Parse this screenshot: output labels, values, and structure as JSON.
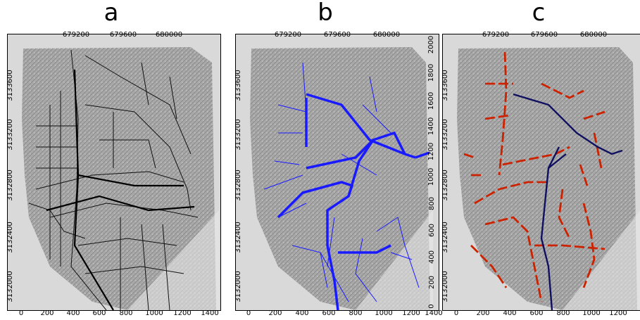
{
  "panels": [
    {
      "label": "a",
      "network_color": "#111111",
      "description_hint": "parcel boundaries"
    },
    {
      "label": "b",
      "network_color": "#1a1aff"
    },
    {
      "label": "c",
      "network_color": "#cc2200",
      "second_color": "#101060"
    }
  ],
  "axes": {
    "top_ticks": [
      "679200",
      "679600",
      "680000"
    ],
    "left_ticks": [
      "3133600",
      "3133200",
      "3132800",
      "3132400",
      "3132000"
    ],
    "right_ticks": [
      "2000",
      "1800",
      "1600",
      "1400",
      "1200",
      "1000",
      "800",
      "600",
      "400",
      "200",
      "0"
    ],
    "bottom_ticks": [
      "0",
      "200",
      "400",
      "600",
      "800",
      "1000",
      "1200",
      "1400"
    ]
  }
}
